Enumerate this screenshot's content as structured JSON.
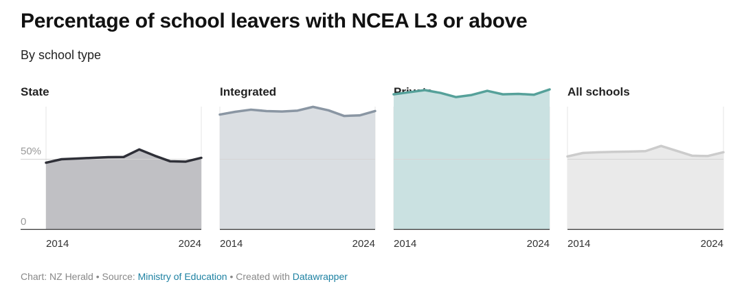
{
  "title": "Percentage of school leavers with NCEA L3 or above",
  "subtitle": "By school type",
  "footer": {
    "chart_prefix": "Chart: NZ Herald",
    "source_prefix": "Source: ",
    "source_link": "Ministry of Education",
    "created_prefix": "Created with ",
    "created_link": "Datawrapper",
    "separator": " • "
  },
  "chart_data": [
    {
      "type": "area",
      "panel_title": "State",
      "color": "#2f3038",
      "fill": "#c0c0c4",
      "x": [
        2014,
        2015,
        2016,
        2017,
        2018,
        2019,
        2020,
        2021,
        2022,
        2023,
        2024
      ],
      "values": [
        47.5,
        50.0,
        50.5,
        51.0,
        51.5,
        51.6,
        57.0,
        52.5,
        48.5,
        48.3,
        51.0
      ],
      "x_tick_labels": [
        "2014",
        "2024"
      ],
      "y_tick_labels": [
        "50%",
        "0"
      ],
      "ylim": [
        0,
        100
      ]
    },
    {
      "type": "area",
      "panel_title": "Integrated",
      "color": "#8a96a3",
      "fill": "#dadee2",
      "x": [
        2014,
        2015,
        2016,
        2017,
        2018,
        2019,
        2020,
        2021,
        2022,
        2023,
        2024
      ],
      "values": [
        82.0,
        84.0,
        85.5,
        84.5,
        84.2,
        84.8,
        87.5,
        85.0,
        81.0,
        81.4,
        84.5
      ],
      "x_tick_labels": [
        "2014",
        "2024"
      ],
      "ylim": [
        0,
        100
      ]
    },
    {
      "type": "area",
      "panel_title": "Private",
      "color": "#56a19a",
      "fill": "#cae1e1",
      "x": [
        2014,
        2015,
        2016,
        2017,
        2018,
        2019,
        2020,
        2021,
        2022,
        2023,
        2024
      ],
      "values": [
        96.5,
        98.0,
        99.5,
        97.5,
        94.5,
        96.0,
        99.0,
        96.5,
        96.8,
        96.2,
        100.0
      ],
      "x_tick_labels": [
        "2014",
        "2024"
      ],
      "ylim": [
        0,
        100
      ]
    },
    {
      "type": "area",
      "panel_title": "All schools",
      "color": "#cccccc",
      "fill": "#eaeaea",
      "x": [
        2014,
        2015,
        2016,
        2017,
        2018,
        2019,
        2020,
        2021,
        2022,
        2023,
        2024
      ],
      "values": [
        52.0,
        54.5,
        55.0,
        55.3,
        55.5,
        55.8,
        59.5,
        56.0,
        52.5,
        52.3,
        55.0
      ],
      "x_tick_labels": [
        "2014",
        "2024"
      ],
      "ylim": [
        0,
        100
      ]
    }
  ]
}
